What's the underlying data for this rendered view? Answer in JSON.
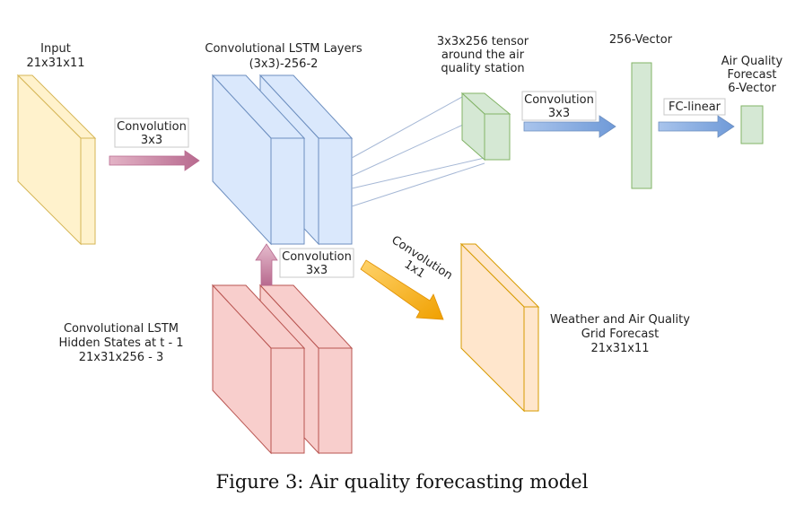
{
  "labels": {
    "input_line1": "Input",
    "input_line2": "21x31x11",
    "convlstm_line1": "Convolutional LSTM Layers",
    "convlstm_line2": "(3x3)-256-2",
    "tensor_line1": "3x3x256 tensor",
    "tensor_line2": "around the air",
    "tensor_line3": "quality station",
    "vector256": "256-Vector",
    "aq_line1": "Air Quality",
    "aq_line2": "Forecast",
    "aq_line3": "6-Vector",
    "conv_a_line1": "Convolution",
    "conv_a_line2": "3x3",
    "conv_b_line1": "Convolution",
    "conv_b_line2": "3x3",
    "conv_c_line1": "Convolution",
    "conv_c_line2": "3x3",
    "conv_d_line1": "Convolution",
    "conv_d_line2": "1x1",
    "fc_linear": "FC-linear",
    "hidden_line1": "Convolutional LSTM",
    "hidden_line2": "Hidden States at t - 1",
    "hidden_line3": "21x31x256 - 3",
    "weather_line1": "Weather and Air Quality",
    "weather_line2": "Grid Forecast",
    "weather_line3": "21x31x11"
  },
  "caption": "Figure 3: Air quality forecasting model",
  "colors": {
    "input_fill": "#fff2cc",
    "input_stroke": "#d6b656",
    "lstm_fill": "#dae8fc",
    "lstm_stroke": "#6c8ebf",
    "green_fill": "#d5e8d4",
    "green_stroke": "#82b366",
    "red_fill": "#f8cecc",
    "red_stroke": "#b85450",
    "orange_fill": "#ffe6cc",
    "orange_stroke": "#d79b00",
    "arrow_pink": "#c47a9c",
    "arrow_blue": "#7ea6e0",
    "arrow_orange": "#f5a40c"
  }
}
